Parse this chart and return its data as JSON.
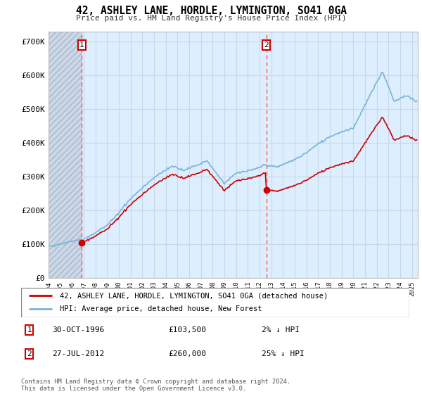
{
  "title": "42, ASHLEY LANE, HORDLE, LYMINGTON, SO41 0GA",
  "subtitle": "Price paid vs. HM Land Registry's House Price Index (HPI)",
  "ylabel_ticks": [
    "£0",
    "£100K",
    "£200K",
    "£300K",
    "£400K",
    "£500K",
    "£600K",
    "£700K"
  ],
  "ytick_values": [
    0,
    100000,
    200000,
    300000,
    400000,
    500000,
    600000,
    700000
  ],
  "ylim": [
    0,
    730000
  ],
  "xlim_start": 1994.0,
  "xlim_end": 2025.5,
  "purchase1_year": 1996.83,
  "purchase1_price": 103500,
  "purchase2_year": 2012.57,
  "purchase2_price": 260000,
  "legend_entries": [
    "42, ASHLEY LANE, HORDLE, LYMINGTON, SO41 0GA (detached house)",
    "HPI: Average price, detached house, New Forest"
  ],
  "table_rows": [
    [
      "1",
      "30-OCT-1996",
      "£103,500",
      "2% ↓ HPI"
    ],
    [
      "2",
      "27-JUL-2012",
      "£260,000",
      "25% ↓ HPI"
    ]
  ],
  "footer": "Contains HM Land Registry data © Crown copyright and database right 2024.\nThis data is licensed under the Open Government Licence v3.0.",
  "hpi_color": "#7ab4d8",
  "price_color": "#cc0000",
  "chart_bg": "#ddeeff",
  "hatch_color": "#c0c8d8",
  "grid_color": "#c8d8e8",
  "vline_color": "#ff5555",
  "box_color": "#cc0000",
  "hatch_bg": "#ccd8e8"
}
